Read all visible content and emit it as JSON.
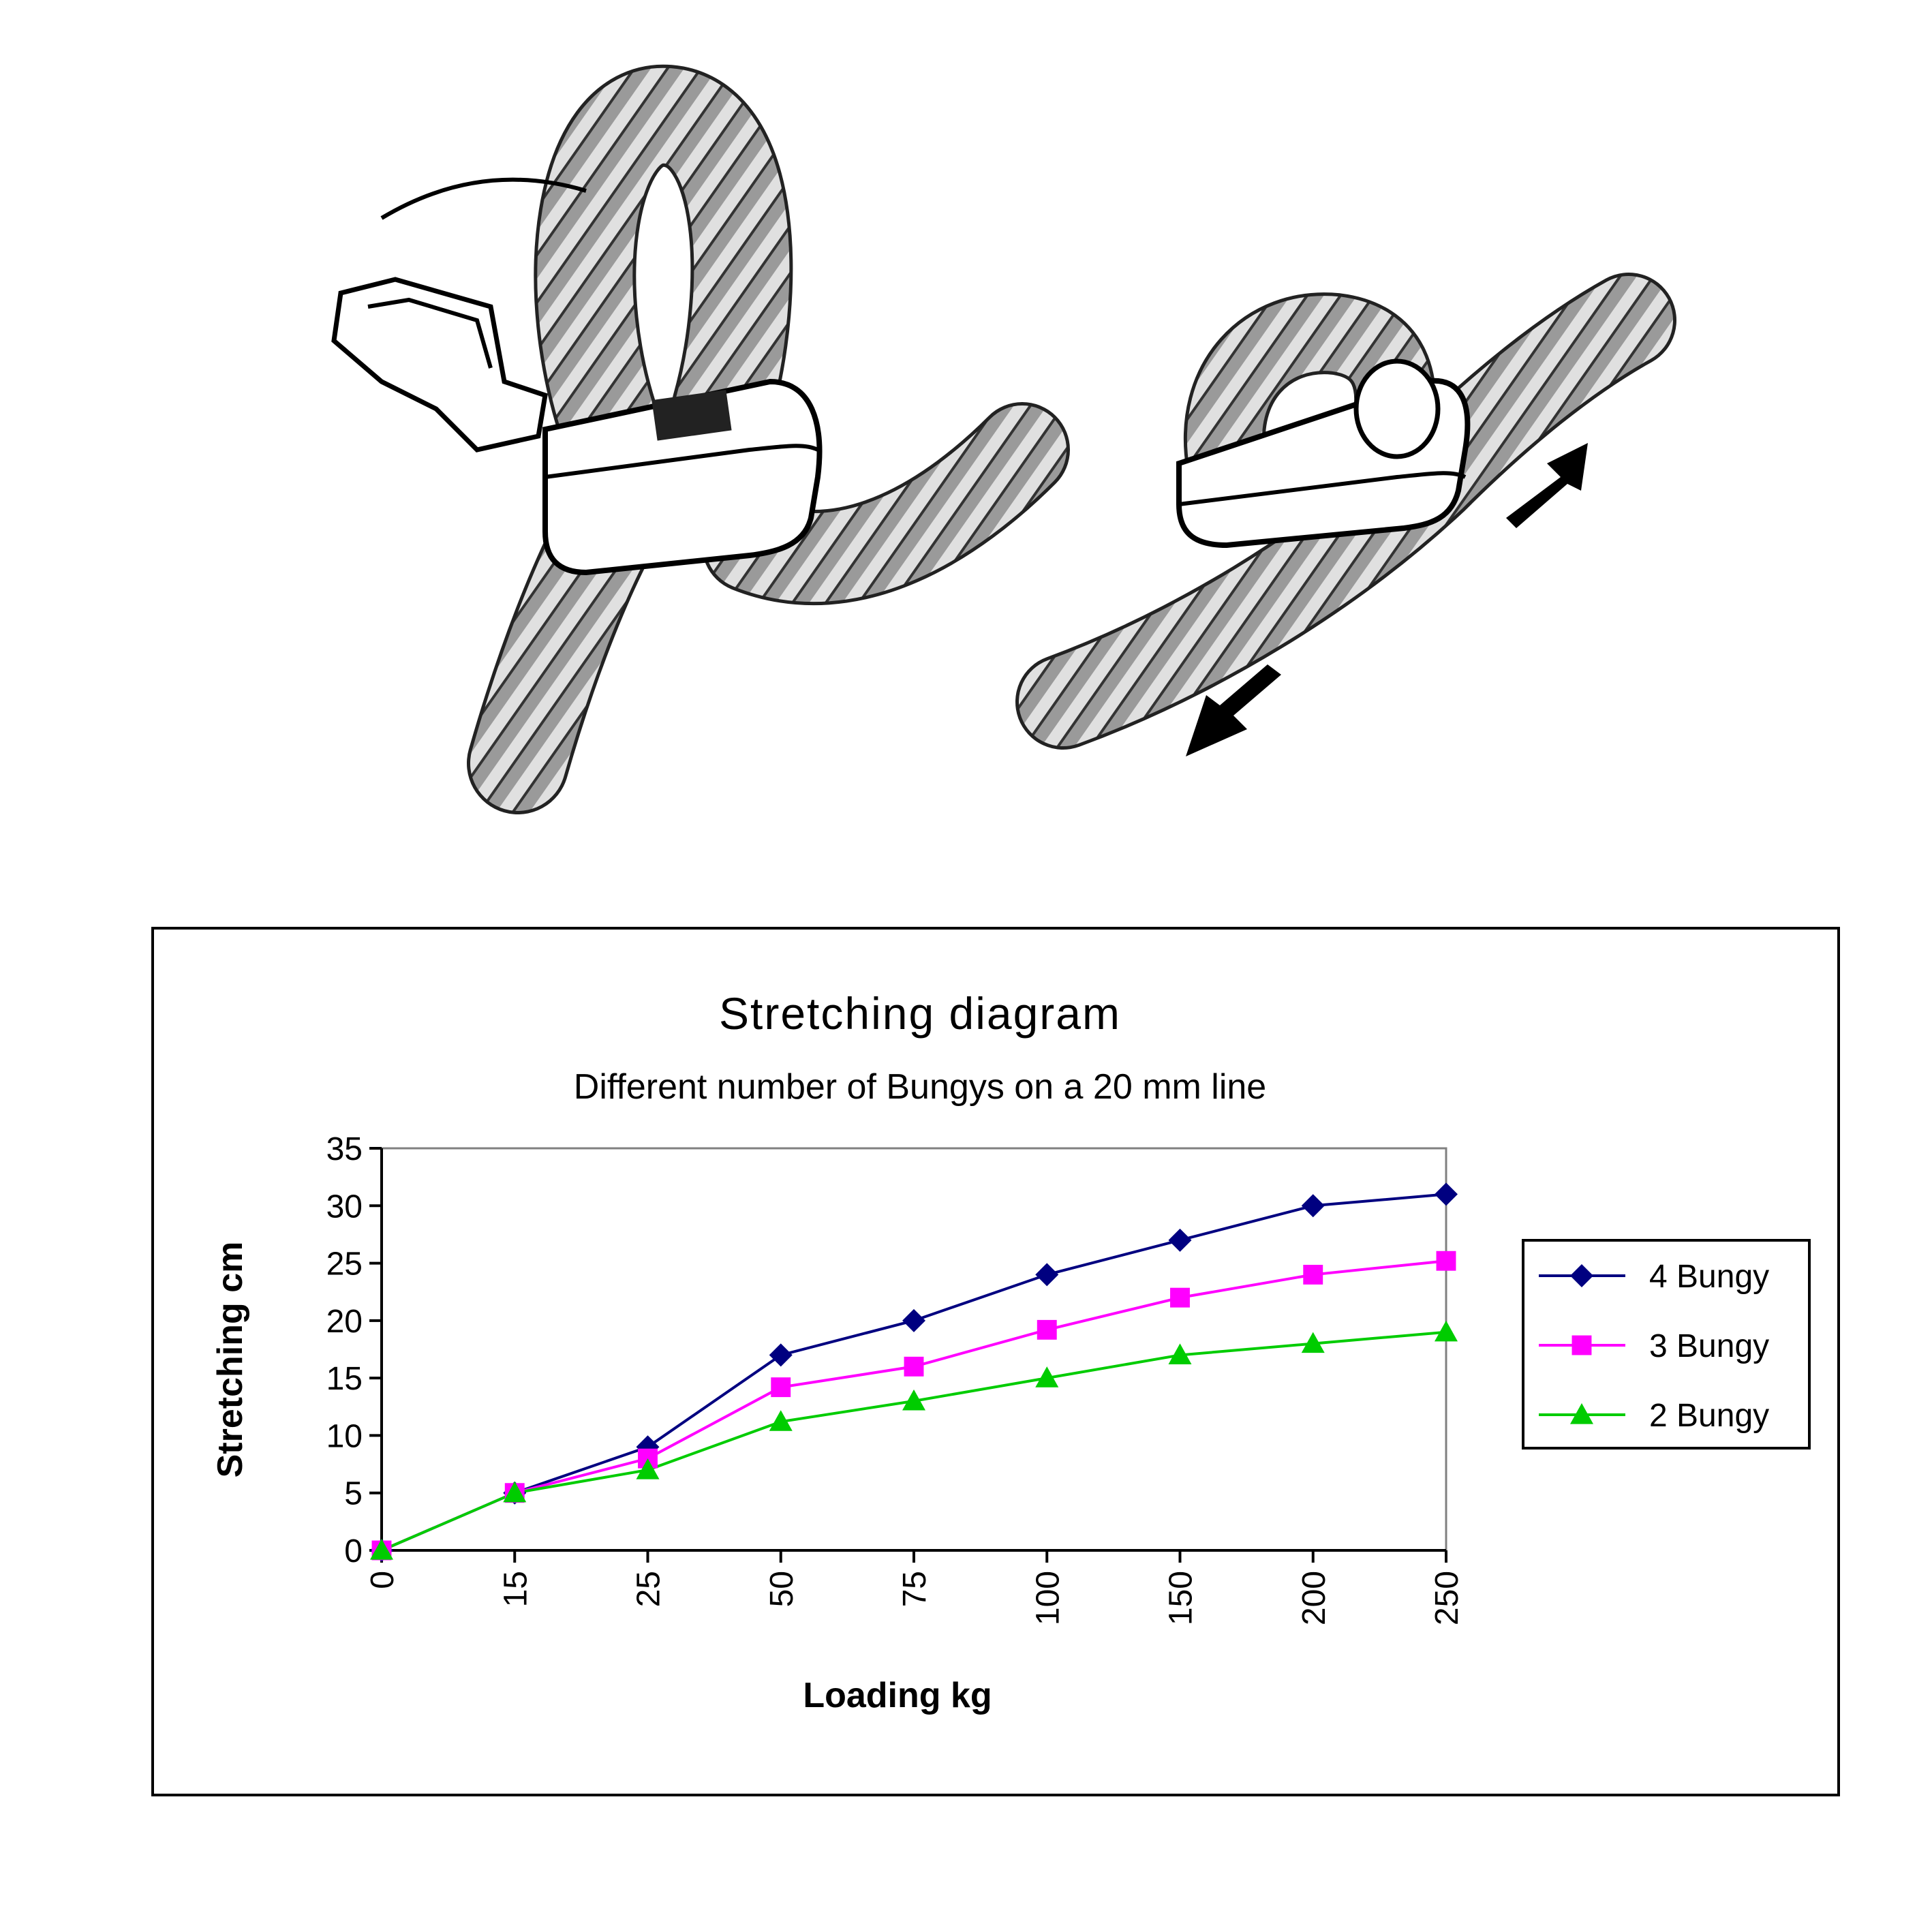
{
  "illustration": {
    "left_icon": "bungy-clip-open-with-rope-loop",
    "right_icon": "bungy-clip-closed-on-rope",
    "arrow_icon": "pull-direction-arrow"
  },
  "chart_data": {
    "type": "line",
    "title": "Stretching diagram",
    "subtitle": "Different number of Bungys on a 20 mm line",
    "xlabel": "Loading kg",
    "ylabel": "Stretching cm",
    "categories": [
      "0",
      "15",
      "25",
      "50",
      "75",
      "100",
      "150",
      "200",
      "250"
    ],
    "ylim": [
      0,
      35
    ],
    "yticks": [
      0,
      5,
      10,
      15,
      20,
      25,
      30,
      35
    ],
    "grid": false,
    "legend_position": "right",
    "series": [
      {
        "name": "4 Bungy",
        "color": "#000080",
        "marker": "diamond",
        "values": [
          0,
          5,
          9,
          17,
          20,
          24,
          27,
          30,
          31
        ]
      },
      {
        "name": "3 Bungy",
        "color": "#ff00ff",
        "marker": "square",
        "values": [
          0,
          5,
          8,
          14.2,
          16,
          19.2,
          22,
          24,
          25.2
        ]
      },
      {
        "name": "2 Bungy",
        "color": "#00cc00",
        "marker": "triangle",
        "values": [
          0,
          5,
          7,
          11.2,
          13,
          15,
          17,
          18,
          19
        ]
      }
    ]
  }
}
